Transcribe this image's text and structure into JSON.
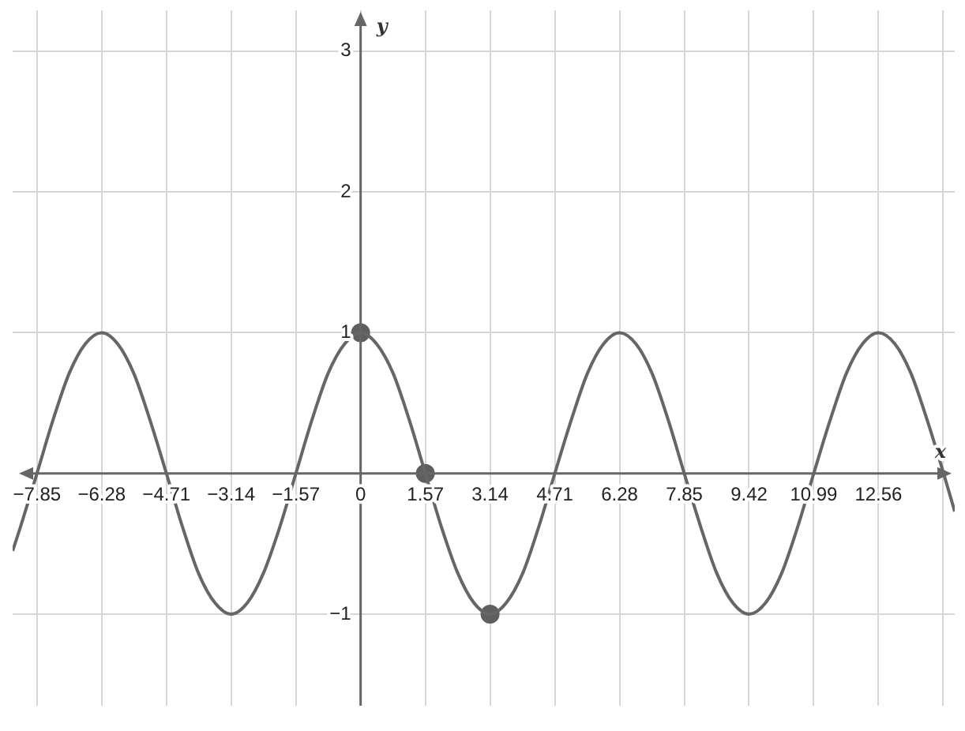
{
  "chart_data": {
    "type": "line",
    "xlabel": "x",
    "ylabel": "y",
    "grid": true,
    "xlim": [
      -8.44,
      14.41
    ],
    "ylim": [
      -1.65,
      3.29
    ],
    "xticks": [
      -7.85,
      -6.28,
      -4.71,
      -3.14,
      -1.57,
      0,
      1.57,
      3.14,
      4.71,
      6.28,
      7.85,
      9.42,
      10.99,
      12.56,
      {
        "value": 14.13,
        "label": null
      }
    ],
    "yticks": [
      -1,
      1,
      2,
      3
    ],
    "series": [
      {
        "type": "line",
        "color": "#666666",
        "marker": "none",
        "x": [
          -8.44,
          -8.25,
          -7.85,
          -7.46,
          -7.07,
          -6.68,
          -6.28,
          -5.89,
          -5.5,
          -5.11,
          -4.71,
          -4.32,
          -3.93,
          -3.53,
          -3.14,
          -2.75,
          -2.36,
          -1.96,
          -1.57,
          -1.18,
          -0.79,
          -0.39,
          0,
          0.39,
          0.79,
          1.18,
          1.57,
          1.96,
          2.36,
          2.75,
          3.14,
          3.53,
          3.93,
          4.32,
          4.71,
          5.11,
          5.5,
          5.89,
          6.28,
          6.68,
          7.07,
          7.46,
          7.85,
          8.25,
          8.64,
          9.03,
          9.42,
          9.82,
          10.21,
          10.6,
          10.99,
          11.39,
          11.78,
          12.17,
          12.56,
          12.96,
          13.35,
          13.74,
          14.14,
          14.41
        ],
        "values": [
          -0.55,
          -0.38,
          0,
          0.38,
          0.71,
          0.92,
          1,
          0.92,
          0.71,
          0.38,
          0,
          -0.38,
          -0.71,
          -0.92,
          -1,
          -0.92,
          -0.71,
          -0.38,
          0,
          0.38,
          0.71,
          0.92,
          1,
          0.92,
          0.71,
          0.38,
          0,
          -0.38,
          -0.71,
          -0.92,
          -1,
          -0.92,
          -0.71,
          -0.38,
          0,
          0.38,
          0.71,
          0.92,
          1,
          0.92,
          0.71,
          0.38,
          0,
          -0.38,
          -0.71,
          -0.92,
          -1,
          -0.92,
          -0.71,
          -0.38,
          0,
          0.38,
          0.71,
          0.92,
          1,
          0.92,
          0.71,
          0.38,
          0,
          -0.27
        ]
      },
      {
        "type": "scatter",
        "color": "#5f5f5f",
        "marker": "circle",
        "x": [
          0,
          1.57,
          3.14
        ],
        "values": [
          1,
          0,
          -1
        ]
      }
    ]
  }
}
